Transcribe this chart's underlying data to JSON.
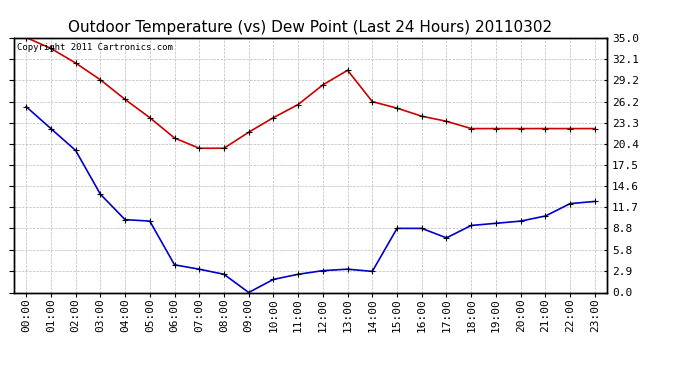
{
  "title": "Outdoor Temperature (vs) Dew Point (Last 24 Hours) 20110302",
  "copyright_text": "Copyright 2011 Cartronics.com",
  "x_labels": [
    "00:00",
    "01:00",
    "02:00",
    "03:00",
    "04:00",
    "05:00",
    "06:00",
    "07:00",
    "08:00",
    "09:00",
    "10:00",
    "11:00",
    "12:00",
    "13:00",
    "14:00",
    "15:00",
    "16:00",
    "17:00",
    "18:00",
    "19:00",
    "20:00",
    "21:00",
    "22:00",
    "23:00"
  ],
  "temp_values": [
    35.0,
    33.5,
    31.5,
    29.2,
    26.5,
    24.0,
    21.2,
    19.8,
    19.8,
    22.0,
    24.0,
    25.8,
    28.5,
    30.5,
    26.2,
    25.3,
    24.2,
    23.5,
    22.5,
    22.5,
    22.5,
    22.5,
    22.5,
    22.5
  ],
  "dew_values": [
    25.5,
    22.5,
    19.5,
    13.5,
    10.0,
    9.8,
    3.8,
    3.2,
    2.5,
    0.0,
    1.8,
    2.5,
    3.0,
    3.2,
    2.9,
    8.8,
    8.8,
    7.5,
    9.2,
    9.5,
    9.8,
    10.5,
    12.2,
    12.5
  ],
  "temp_color": "#cc0000",
  "dew_color": "#0000cc",
  "background_color": "#ffffff",
  "plot_bg_color": "#ffffff",
  "grid_color": "#bbbbbb",
  "y_ticks": [
    0.0,
    2.9,
    5.8,
    8.8,
    11.7,
    14.6,
    17.5,
    20.4,
    23.3,
    26.2,
    29.2,
    32.1,
    35.0
  ],
  "ylim": [
    0.0,
    35.0
  ],
  "title_fontsize": 11,
  "tick_fontsize": 8,
  "marker": "+"
}
